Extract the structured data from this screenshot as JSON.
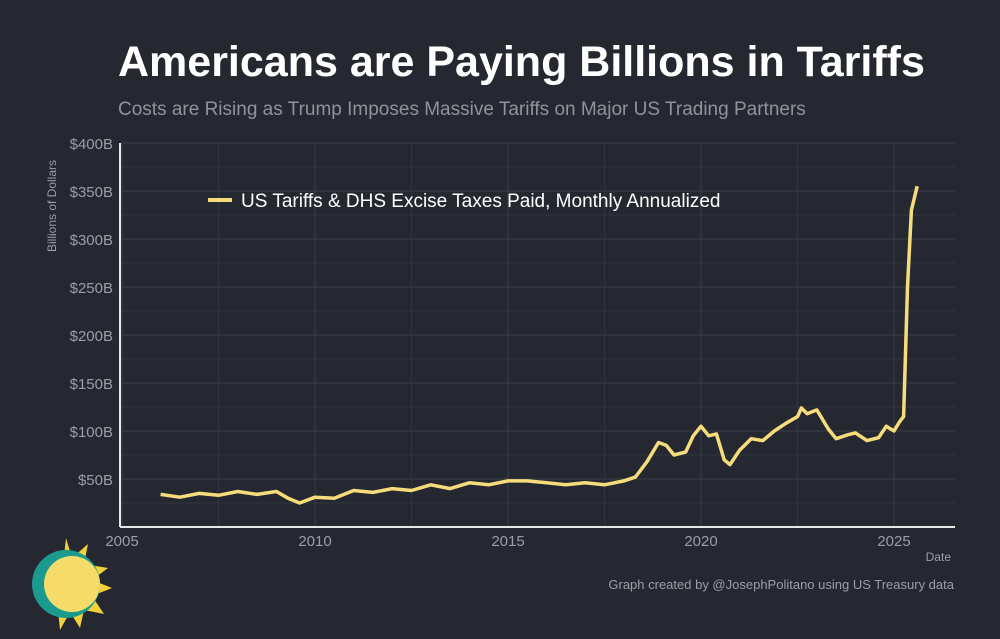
{
  "title": "Americans are Paying Billions in Tariffs",
  "subtitle": "Costs are Rising as Trump Imposes Massive Tariffs on Major US Trading Partners",
  "credit": "Graph created by @JosephPolitano using US Treasury data",
  "chart_data": {
    "type": "line",
    "title": "Americans are Paying Billions in Tariffs",
    "xlabel": "Date",
    "ylabel": "Billions of Dollars",
    "xlim": [
      2005,
      2026.6
    ],
    "ylim": [
      0,
      400
    ],
    "x_ticks": [
      2005,
      2010,
      2015,
      2020,
      2025
    ],
    "x_tick_labels": [
      "2005",
      "2010",
      "2015",
      "2020",
      "2025"
    ],
    "y_ticks": [
      50,
      100,
      150,
      200,
      250,
      300,
      350,
      400
    ],
    "y_tick_labels": [
      "$50B",
      "$100B",
      "$150B",
      "$200B",
      "$250B",
      "$300B",
      "$350B",
      "$400B"
    ],
    "grid": true,
    "legend_position": "top-left",
    "color": "#f6dc7a",
    "series": [
      {
        "name": "US Tariffs & DHS Excise Taxes Paid, Monthly Annualized",
        "x": [
          2006.0,
          2006.5,
          2007,
          2007.5,
          2008,
          2008.5,
          2009,
          2009.3,
          2009.6,
          2010,
          2010.5,
          2011,
          2011.5,
          2012,
          2012.5,
          2013,
          2013.5,
          2014,
          2014.5,
          2015,
          2015.5,
          2016,
          2016.5,
          2017,
          2017.5,
          2018,
          2018.3,
          2018.6,
          2018.9,
          2019.1,
          2019.3,
          2019.6,
          2019.8,
          2020.0,
          2020.2,
          2020.4,
          2020.6,
          2020.75,
          2021.0,
          2021.3,
          2021.6,
          2021.9,
          2022.2,
          2022.5,
          2022.6,
          2022.75,
          2023.0,
          2023.3,
          2023.5,
          2023.8,
          2024.0,
          2024.3,
          2024.6,
          2024.8,
          2025.0,
          2025.15,
          2025.25,
          2025.35,
          2025.45,
          2025.6
        ],
        "y": [
          34,
          31,
          35,
          33,
          37,
          34,
          37,
          30,
          25,
          31,
          30,
          38,
          36,
          40,
          38,
          44,
          40,
          46,
          44,
          48,
          48,
          46,
          44,
          46,
          44,
          48,
          52,
          68,
          88,
          85,
          75,
          78,
          95,
          105,
          95,
          97,
          70,
          65,
          80,
          92,
          90,
          100,
          108,
          115,
          124,
          118,
          122,
          102,
          92,
          96,
          98,
          90,
          93,
          105,
          100,
          110,
          115,
          250,
          330,
          355
        ]
      }
    ]
  }
}
